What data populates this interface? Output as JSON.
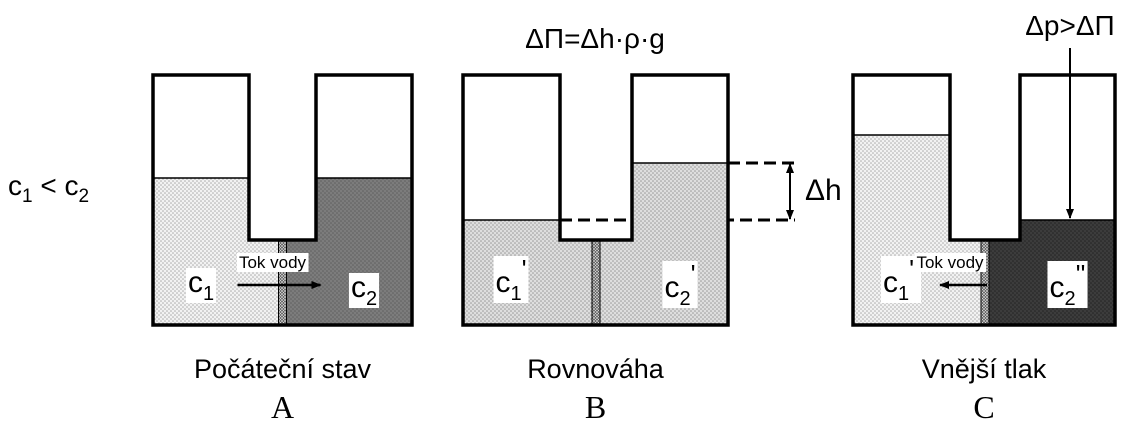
{
  "condition": {
    "left": {
      "base": "c",
      "sub": "1"
    },
    "op": "<",
    "right": {
      "base": "c",
      "sub": "2"
    }
  },
  "formula_b": "ΔΠ=Δh·ρ·g",
  "formula_c": "Δp>ΔΠ",
  "delta_h": "Δh",
  "panels": [
    {
      "left_label": {
        "base": "c",
        "sub": "1"
      },
      "right_label": {
        "base": "c",
        "sub": "2"
      },
      "flow": "Tok vody",
      "caption": "Počáteční stav",
      "letter": "A"
    },
    {
      "left_label": {
        "base": "c",
        "sub": "1",
        "mark": "'"
      },
      "right_label": {
        "base": "c",
        "sub": "2",
        "mark": "'"
      },
      "caption": "Rovnováha",
      "letter": "B"
    },
    {
      "left_label": {
        "base": "c",
        "sub": "1",
        "mark": "''"
      },
      "right_label": {
        "base": "c",
        "sub": "2",
        "mark": "''"
      },
      "flow": "Tok vody",
      "caption": "Vnější tlak",
      "letter": "C"
    }
  ]
}
